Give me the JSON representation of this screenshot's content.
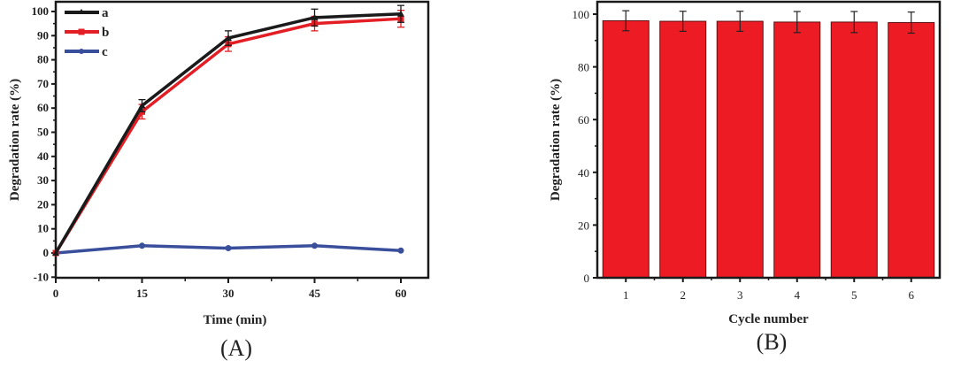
{
  "chart_data": [
    {
      "type": "line",
      "panel_label": "(A)",
      "xlabel": "Time (min)",
      "ylabel": "Degradation rate (%)",
      "x": [
        0,
        15,
        30,
        45,
        60
      ],
      "xticks": [
        "0",
        "15",
        "30",
        "45",
        "60"
      ],
      "yticks": [
        "-10",
        "0",
        "10",
        "20",
        "30",
        "40",
        "50",
        "60",
        "70",
        "80",
        "90",
        "100"
      ],
      "xlim": [
        0,
        65
      ],
      "ylim": [
        -10,
        103
      ],
      "legend_position": "upper left",
      "series": [
        {
          "name": "a",
          "color": "#1a1a1a",
          "marker": "triangle",
          "values": [
            0,
            61,
            89,
            97.5,
            99
          ],
          "errors": [
            0,
            2.5,
            3,
            3.5,
            3.5
          ]
        },
        {
          "name": "b",
          "color": "#e31e24",
          "marker": "square",
          "values": [
            0,
            58.5,
            86.5,
            95,
            97
          ],
          "errors": [
            0,
            3,
            3,
            3,
            3.5
          ]
        },
        {
          "name": "c",
          "color": "#3a4f9b",
          "marker": "circle",
          "values": [
            0,
            3,
            2,
            3,
            1
          ],
          "errors": [
            0,
            0,
            0,
            0,
            0
          ]
        }
      ]
    },
    {
      "type": "bar",
      "panel_label": "(B)",
      "xlabel": "Cycle number",
      "ylabel": "Degradation rate (%)",
      "categories": [
        "1",
        "2",
        "3",
        "4",
        "5",
        "6"
      ],
      "values": [
        97.5,
        97.3,
        97.3,
        97.0,
        97.0,
        96.8
      ],
      "errors": [
        3.8,
        3.8,
        3.8,
        4.0,
        4.0,
        4.0
      ],
      "yticks": [
        "0",
        "20",
        "40",
        "60",
        "80",
        "100"
      ],
      "ylim": [
        0,
        104
      ],
      "bar_color": "#ed1c24"
    }
  ]
}
